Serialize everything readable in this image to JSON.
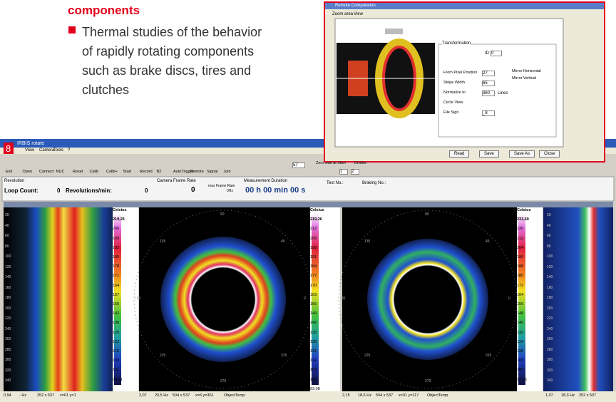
{
  "header": {
    "heading": "components",
    "bullet_lines": [
      "Thermal studies of the behavior",
      "of rapidly rotating components",
      "such as brake discs, tires and",
      "clutches"
    ]
  },
  "dialog": {
    "title": "Remote Computation",
    "tabs": [
      "Zoom area",
      "View"
    ],
    "group": "Transformation",
    "id_label": "ID",
    "id_value": "0",
    "fields": [
      {
        "label": "From Pixel Position",
        "value": "27"
      },
      {
        "label": "Stripe Width",
        "value": "65"
      },
      {
        "label": "Normalize to",
        "value": "360",
        "unit": "Lines"
      },
      {
        "label": "Circle View"
      },
      {
        "label": "File Sign",
        "value": "_8"
      }
    ],
    "checks": [
      "Mirror Horizontal",
      "Mirror Vertical"
    ],
    "buttons": [
      "Read",
      "Save",
      "Save As",
      "Close"
    ]
  },
  "app": {
    "figure": "8",
    "title": "IRBIS rotate",
    "menu": [
      "View",
      "Camera",
      "Tools",
      "?"
    ],
    "toolbar": [
      "Exit",
      "Open",
      "Connect",
      "NUC",
      "Reset",
      "Calib",
      "Calib+",
      "Start",
      "Record",
      "B2",
      "AutoTrigger",
      "Remote",
      "Signal",
      "Join"
    ],
    "frame_input": "57",
    "zero_wait": "Zero wait at Start",
    "divider": "Divider:",
    "divider_values": [
      "1",
      "2"
    ],
    "status": {
      "revolution": "Revolution",
      "loop_label": "Loop Count:",
      "loop_value": "0",
      "rpm_label": "Revolutions/min:",
      "rpm_value": "0",
      "frame_rate": "Camera Frame Rate",
      "frame_value": "0",
      "max_rate": "max Frame Rate",
      "max_value": "0Hz",
      "duration": "Measurement Duration",
      "duration_value": "00 h 00 min 00 s",
      "test": "Test No.:",
      "braking": "Braking No.:"
    },
    "panels": [
      {
        "yticks": [
          "20",
          "40",
          "60",
          "80",
          "100",
          "120",
          "140",
          "160",
          "180",
          "200",
          "220",
          "240",
          "260",
          "280",
          "300",
          "320",
          "340"
        ],
        "scale": [
          "Celsius",
          "219,26",
          "206",
          "199",
          "192",
          "185",
          "178",
          "171",
          "164",
          "157",
          "150",
          "143",
          "136",
          "129",
          "122",
          "115",
          "108",
          "101",
          "93,91"
        ],
        "status": [
          "0,94",
          "- Hz",
          "252 x 537",
          "x=61 y=1"
        ]
      },
      {
        "polar": [
          "90",
          "45",
          "135",
          "180",
          "0",
          "225",
          "315",
          "270"
        ],
        "scale": [
          "Celsius",
          "219,26",
          "212",
          "205",
          "198",
          "191",
          "184",
          "177",
          "170",
          "163",
          "156",
          "149",
          "142",
          "135",
          "128",
          "121",
          "114",
          "107",
          "100",
          "93,08"
        ],
        "status": [
          "2,07",
          "20,5 Hz",
          "504 x 537",
          "x=6 y=361",
          "ObjectTemp"
        ]
      },
      {
        "polar": [
          "90",
          "45",
          "135",
          "180",
          "0",
          "225",
          "315",
          "270"
        ],
        "scale": [
          "Celsius",
          "231,60",
          "220",
          "212",
          "204",
          "196",
          "188",
          "180",
          "172",
          "164",
          "156",
          "148",
          "140",
          "132",
          "124",
          "116",
          "108",
          "100",
          "92,26"
        ],
        "status": [
          "2,15",
          "18,6 Hz",
          "504 x 537",
          "x=31 y=117",
          "ObjectTemp"
        ]
      },
      {
        "yticks": [
          "20",
          "40",
          "60",
          "80",
          "100",
          "120",
          "140",
          "160",
          "180",
          "200",
          "220",
          "240",
          "260",
          "280",
          "300",
          "320",
          "340"
        ],
        "status": [
          "1,07",
          "18,3 Hz",
          "252 x 537"
        ]
      }
    ]
  }
}
